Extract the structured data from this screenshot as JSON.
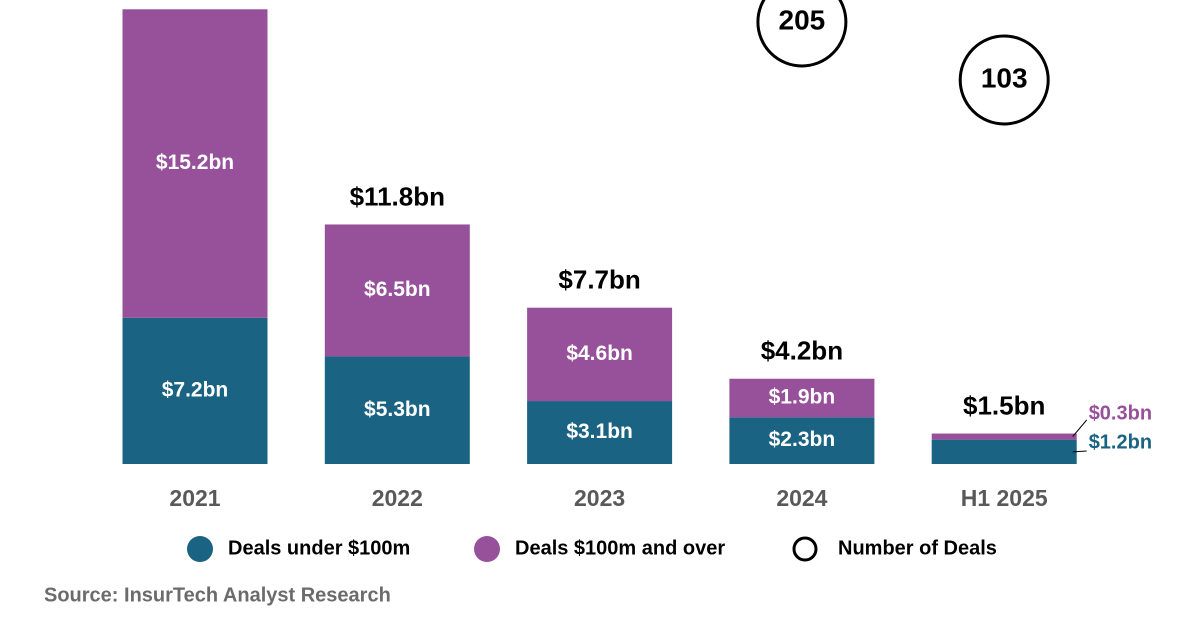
{
  "chart_data": {
    "type": "bar",
    "stacked": true,
    "categories": [
      "2021",
      "2022",
      "2023",
      "2024",
      "H1 2025"
    ],
    "series": [
      {
        "name": "Deals under $100m",
        "color": "#1b6382",
        "values": [
          7.2,
          5.3,
          3.1,
          2.3,
          1.2
        ],
        "value_labels": [
          "$7.2bn",
          "$5.3bn",
          "$3.1bn",
          "$2.3bn",
          "$1.2bn"
        ]
      },
      {
        "name": "Deals $100m and over",
        "color": "#96519a",
        "values": [
          15.2,
          6.5,
          4.6,
          1.9,
          0.3
        ],
        "value_labels": [
          "$15.2bn",
          "$6.5bn",
          "$4.6bn",
          "$1.9bn",
          "$0.3bn"
        ]
      }
    ],
    "totals": {
      "values": [
        null,
        11.8,
        7.7,
        4.2,
        1.5
      ],
      "value_labels": [
        null,
        "$11.8bn",
        "$7.7bn",
        "$4.2bn",
        "$1.5bn"
      ]
    },
    "deals": {
      "name": "Number of Deals",
      "color": "#000000",
      "values": [
        null,
        null,
        null,
        205,
        103
      ]
    },
    "source": "Source: InsurTech Analyst Research"
  }
}
